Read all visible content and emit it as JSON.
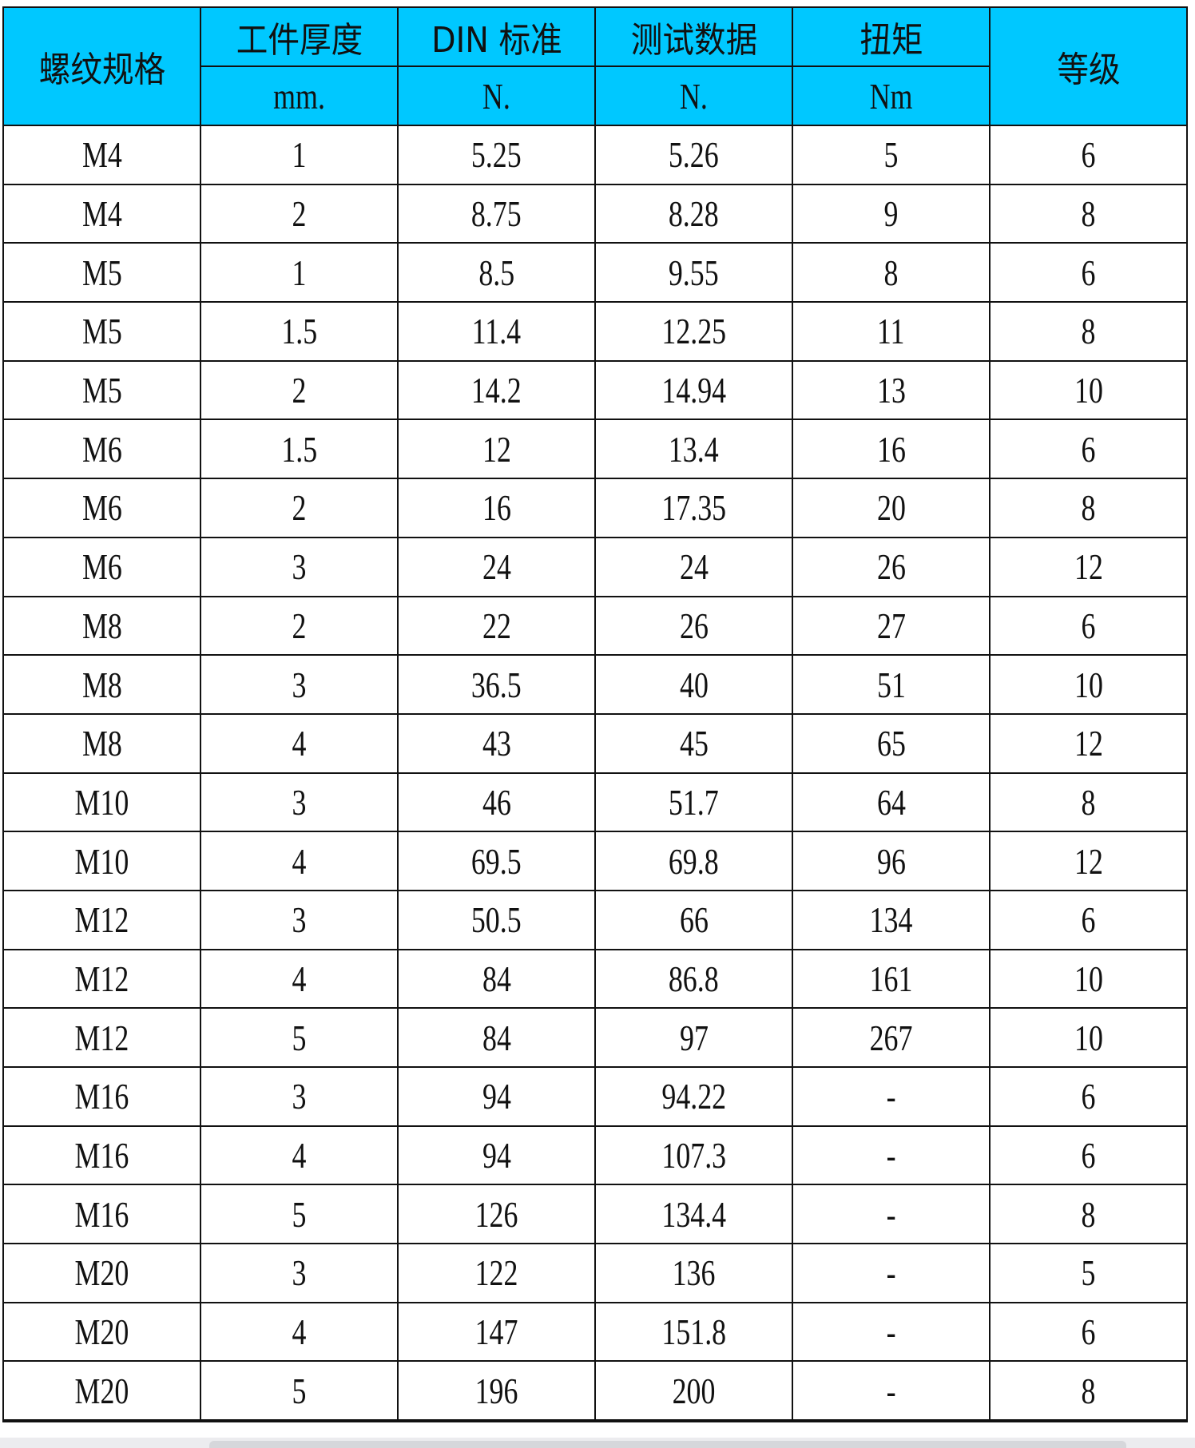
{
  "header": {
    "thread_spec": "螺纹规格",
    "thickness": "工件厚度",
    "thickness_unit": "mm.",
    "din": "DIN 标准",
    "din_unit": "N.",
    "test": "测试数据",
    "test_unit": "N.",
    "torque": "扭矩",
    "torque_unit": "Nm",
    "grade": "等级"
  },
  "colors": {
    "header_bg": "#00c8ff"
  },
  "rows": [
    [
      "M4",
      "1",
      "5.25",
      "5.26",
      "5",
      "6"
    ],
    [
      "M4",
      "2",
      "8.75",
      "8.28",
      "9",
      "8"
    ],
    [
      "M5",
      "1",
      "8.5",
      "9.55",
      "8",
      "6"
    ],
    [
      "M5",
      "1.5",
      "11.4",
      "12.25",
      "11",
      "8"
    ],
    [
      "M5",
      "2",
      "14.2",
      "14.94",
      "13",
      "10"
    ],
    [
      "M6",
      "1.5",
      "12",
      "13.4",
      "16",
      "6"
    ],
    [
      "M6",
      "2",
      "16",
      "17.35",
      "20",
      "8"
    ],
    [
      "M6",
      "3",
      "24",
      "24",
      "26",
      "12"
    ],
    [
      "M8",
      "2",
      "22",
      "26",
      "27",
      "6"
    ],
    [
      "M8",
      "3",
      "36.5",
      "40",
      "51",
      "10"
    ],
    [
      "M8",
      "4",
      "43",
      "45",
      "65",
      "12"
    ],
    [
      "M10",
      "3",
      "46",
      "51.7",
      "64",
      "8"
    ],
    [
      "M10",
      "4",
      "69.5",
      "69.8",
      "96",
      "12"
    ],
    [
      "M12",
      "3",
      "50.5",
      "66",
      "134",
      "6"
    ],
    [
      "M12",
      "4",
      "84",
      "86.8",
      "161",
      "10"
    ],
    [
      "M12",
      "5",
      "84",
      "97",
      "267",
      "10"
    ],
    [
      "M16",
      "3",
      "94",
      "94.22",
      "-",
      "6"
    ],
    [
      "M16",
      "4",
      "94",
      "107.3",
      "-",
      "6"
    ],
    [
      "M16",
      "5",
      "126",
      "134.4",
      "-",
      "8"
    ],
    [
      "M20",
      "3",
      "122",
      "136",
      "-",
      "5"
    ],
    [
      "M20",
      "4",
      "147",
      "151.8",
      "-",
      "6"
    ],
    [
      "M20",
      "5",
      "196",
      "200",
      "-",
      "8"
    ]
  ]
}
